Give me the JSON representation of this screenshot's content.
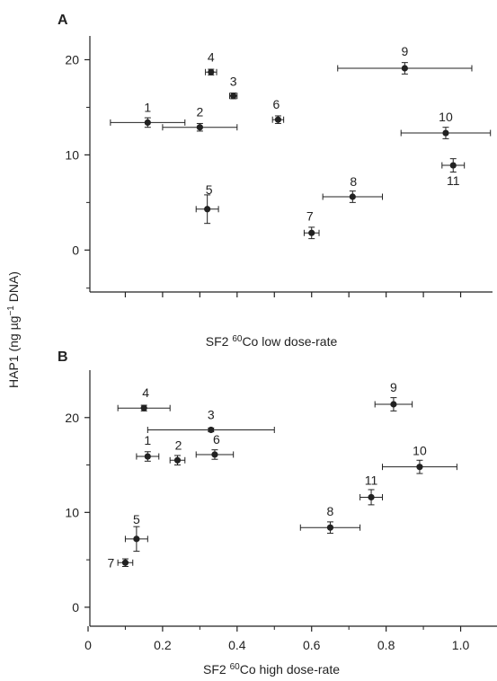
{
  "figure": {
    "ylabel_main": "HAP1 (ng µg",
    "ylabel_sup": "−1",
    "ylabel_tail": " DNA)"
  },
  "chart_data": [
    {
      "type": "scatter",
      "panel_label": "A",
      "xlabel_pre": "SF2 ",
      "xlabel_sup": "60",
      "xlabel_post": "Co low dose-rate",
      "xlim": [
        0,
        1.1
      ],
      "ylim": [
        -4.5,
        22.5
      ],
      "yticks": [
        0,
        10,
        20
      ],
      "ytick_labels": [
        "0",
        "10",
        "20"
      ],
      "xticks": [
        0.1,
        0.2,
        0.3,
        0.4,
        0.5,
        0.6,
        0.7,
        0.8,
        0.9,
        1.0
      ],
      "xtick_labels": [],
      "y_minor_ticks": [
        -4,
        5,
        15
      ],
      "grid": false,
      "points": [
        {
          "label": "1",
          "x": 0.16,
          "y": 13.4,
          "xerr": 0.1,
          "yerr": 0.5
        },
        {
          "label": "2",
          "x": 0.3,
          "y": 12.9,
          "xerr": 0.1,
          "yerr": 0.4
        },
        {
          "label": "3",
          "x": 0.39,
          "y": 16.2,
          "xerr": 0.01,
          "yerr": 0.3
        },
        {
          "label": "4",
          "x": 0.33,
          "y": 18.7,
          "xerr": 0.015,
          "yerr": 0.3
        },
        {
          "label": "5",
          "x": 0.32,
          "y": 4.3,
          "xerr": 0.03,
          "yerr": 1.5
        },
        {
          "label": "6",
          "x": 0.51,
          "y": 13.7,
          "xerr": 0.015,
          "yerr": 0.4
        },
        {
          "label": "7",
          "x": 0.6,
          "y": 1.8,
          "xerr": 0.02,
          "yerr": 0.6
        },
        {
          "label": "8",
          "x": 0.71,
          "y": 5.6,
          "xerr": 0.08,
          "yerr": 0.6
        },
        {
          "label": "9",
          "x": 0.85,
          "y": 19.1,
          "xerr": 0.18,
          "yerr": 0.6
        },
        {
          "label": "10",
          "x": 0.96,
          "y": 12.3,
          "xerr": 0.12,
          "yerr": 0.6
        },
        {
          "label": "11",
          "x": 0.98,
          "y": 8.9,
          "xerr": 0.03,
          "yerr": 0.7
        }
      ]
    },
    {
      "type": "scatter",
      "panel_label": "B",
      "xlabel_pre": "SF2 ",
      "xlabel_sup": "60",
      "xlabel_post": "Co high dose-rate",
      "xlim": [
        0,
        1.1
      ],
      "ylim": [
        -2,
        25
      ],
      "yticks": [
        0,
        10,
        20
      ],
      "ytick_labels": [
        "0",
        "10",
        "20"
      ],
      "xticks": [
        0,
        0.2,
        0.4,
        0.6,
        0.8,
        1.0
      ],
      "xtick_labels": [
        "0",
        "0.2",
        "0.4",
        "0.6",
        "0.8",
        "1.0"
      ],
      "x_minor_ticks": [
        0.1,
        0.3,
        0.5,
        0.7,
        0.9
      ],
      "y_minor_ticks": [
        5,
        15
      ],
      "grid": false,
      "points": [
        {
          "label": "1",
          "x": 0.16,
          "y": 15.9,
          "xerr": 0.03,
          "yerr": 0.5
        },
        {
          "label": "2",
          "x": 0.24,
          "y": 15.5,
          "xerr": 0.02,
          "yerr": 0.5
        },
        {
          "label": "3",
          "x": 0.33,
          "y": 18.7,
          "xerr": 0.17,
          "yerr": 0.2
        },
        {
          "label": "4",
          "x": 0.15,
          "y": 21.0,
          "xerr": 0.07,
          "yerr": 0.3
        },
        {
          "label": "5",
          "x": 0.13,
          "y": 7.2,
          "xerr": 0.03,
          "yerr": 1.3
        },
        {
          "label": "6",
          "x": 0.34,
          "y": 16.1,
          "xerr": 0.05,
          "yerr": 0.5
        },
        {
          "label": "7",
          "x": 0.1,
          "y": 4.7,
          "xerr": 0.02,
          "yerr": 0.4
        },
        {
          "label": "8",
          "x": 0.65,
          "y": 8.4,
          "xerr": 0.08,
          "yerr": 0.6
        },
        {
          "label": "9",
          "x": 0.82,
          "y": 21.4,
          "xerr": 0.05,
          "yerr": 0.7
        },
        {
          "label": "10",
          "x": 0.89,
          "y": 14.8,
          "xerr": 0.1,
          "yerr": 0.7
        },
        {
          "label": "11",
          "x": 0.76,
          "y": 11.6,
          "xerr": 0.03,
          "yerr": 0.8
        }
      ]
    }
  ]
}
